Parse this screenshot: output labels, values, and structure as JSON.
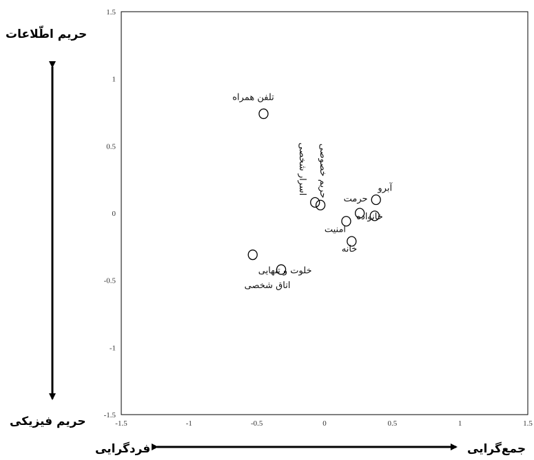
{
  "chart_data": {
    "type": "scatter",
    "title": "",
    "xlim": [
      -1.5,
      1.5
    ],
    "ylim": [
      -1.5,
      1.5
    ],
    "x_ticks": [
      "-1.5",
      "-1",
      "-0.5",
      "0",
      "0.5",
      "1",
      "1.5"
    ],
    "y_ticks": [
      "1.5",
      "1",
      "0.5",
      "0",
      "-0.5",
      "-1",
      "-1.5"
    ],
    "grid": false,
    "points": [
      {
        "label": "تلفن همراه",
        "x": -0.45,
        "y": 0.74
      },
      {
        "label": "حریم خصوصی",
        "x": -0.03,
        "y": 0.06
      },
      {
        "label": "اسرار شخصی",
        "x": -0.07,
        "y": 0.08
      },
      {
        "label": "آبرو",
        "x": 0.38,
        "y": 0.1
      },
      {
        "label": "حرمت",
        "x": 0.26,
        "y": 0.0
      },
      {
        "label": "خانواده",
        "x": 0.37,
        "y": -0.02
      },
      {
        "label": "امنیت",
        "x": 0.16,
        "y": -0.06
      },
      {
        "label": "خانه",
        "x": 0.2,
        "y": -0.21
      },
      {
        "label": "خلوت و تنهایی",
        "x": -0.53,
        "y": -0.31
      },
      {
        "label": "اتاق شخصی",
        "x": -0.32,
        "y": -0.42
      }
    ],
    "axis_annotations": {
      "top": "حریم اطّلاعات",
      "bottom": "حریم فیزیکی",
      "left": "فردگرایی",
      "right": "جمع‌گرایی"
    }
  }
}
